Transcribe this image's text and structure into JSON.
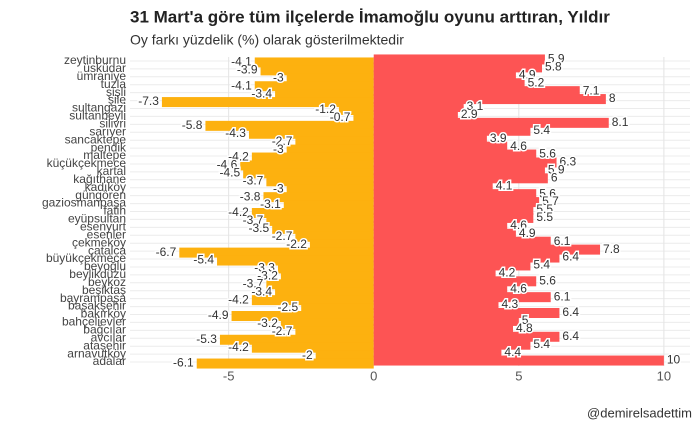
{
  "chart_data": {
    "type": "bar",
    "title": "31 Mart'a göre tüm ilçelerde İmamoğlu oyunu arttıran, Yıldır",
    "subtitle": "Oy farkı yüzdelik (%) olarak gösterilmektedir",
    "caption": "@demirelsadettim",
    "categories": [
      "zeytinburnu",
      "üsküdar",
      "ümraniye",
      "tuzla",
      "şişli",
      "şile",
      "sultangazi",
      "sultanbeyli",
      "silivri",
      "sarıyer",
      "sancaktepe",
      "pendik",
      "maltepe",
      "küçükçekmece",
      "kartal",
      "kağıthane",
      "kadıköy",
      "güngören",
      "gaziosmanpaşa",
      "fatih",
      "eyüpsultan",
      "esenyurt",
      "esenler",
      "çekmeköy",
      "çatalca",
      "büyükçekmece",
      "beyoğlu",
      "beylikdüzü",
      "beykoz",
      "beşiktaş",
      "bayrampaşa",
      "başakşehir",
      "bakırköy",
      "bahçelievler",
      "bağcılar",
      "avcılar",
      "ataşehir",
      "arnavutköy",
      "adalar"
    ],
    "series": [
      {
        "color": "#fdb10f",
        "values": [
          -4.1,
          -3.9,
          -3,
          -4.1,
          -3.4,
          -7.3,
          -1.2,
          -0.7,
          -5.8,
          -4.3,
          -2.7,
          -3,
          -4.2,
          -4.6,
          -4.5,
          -3.7,
          -3,
          -3.8,
          -3.1,
          -4.2,
          -3.7,
          -3.5,
          -2.7,
          -2.2,
          -6.7,
          -5.4,
          -3.3,
          -3.2,
          -3.7,
          -3.4,
          -4.2,
          -2.5,
          -4.9,
          -3.2,
          -2.7,
          -5.3,
          -4.2,
          -2,
          -6.1
        ]
      },
      {
        "color": "#fd5454",
        "values": [
          5.9,
          5.8,
          4.9,
          5.2,
          7.1,
          8,
          3.1,
          2.9,
          8.1,
          5.4,
          3.9,
          4.6,
          5.6,
          6.3,
          5.9,
          6,
          4.1,
          5.6,
          5.7,
          5.5,
          5.5,
          4.6,
          4.9,
          6.1,
          7.8,
          6.4,
          5.4,
          4.2,
          5.6,
          4.6,
          6.1,
          4.3,
          6.4,
          5,
          4.8,
          6.4,
          5.4,
          4.4,
          10
        ]
      }
    ],
    "xlim": [
      -8.4,
      10.9
    ],
    "xticks": [
      -5,
      0,
      5,
      10
    ],
    "grid": true
  }
}
